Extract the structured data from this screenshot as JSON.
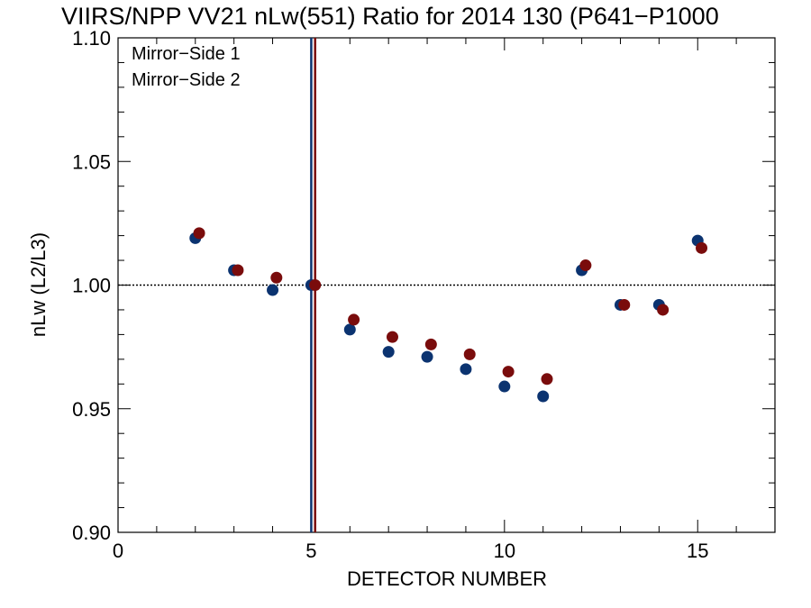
{
  "chart_data": {
    "type": "scatter",
    "title": "VIIRS/NPP VV21 nLw(551) Ratio for 2014 130 (P641−P1000",
    "xlabel": "DETECTOR NUMBER",
    "ylabel": "nLw (L2/L3)",
    "xlim": [
      0,
      17
    ],
    "ylim": [
      0.9,
      1.1
    ],
    "x_ticks": [
      0,
      5,
      10,
      15
    ],
    "x_tick_labels": [
      "0",
      "5",
      "10",
      "15"
    ],
    "y_ticks": [
      0.9,
      0.95,
      1.0,
      1.05,
      1.1
    ],
    "y_tick_labels": [
      "0.90",
      "0.95",
      "1.00",
      "1.05",
      "1.10"
    ],
    "reference_line_y": 1.0,
    "vertical_lines": [
      {
        "x": 5.0,
        "color": "#0b3370"
      },
      {
        "x": 5.1,
        "color": "#7a0c0c"
      }
    ],
    "legend_position": "top-left",
    "series": [
      {
        "name": "Mirror−Side 1",
        "color": "#0b3370",
        "x": [
          2,
          3,
          4,
          5,
          6,
          7,
          8,
          9,
          10,
          11,
          12,
          13,
          14,
          15
        ],
        "y": [
          1.019,
          1.006,
          0.998,
          1.0,
          0.982,
          0.973,
          0.971,
          0.966,
          0.959,
          0.955,
          1.006,
          0.992,
          0.992,
          1.018
        ]
      },
      {
        "name": "Mirror−Side 2",
        "color": "#7a0c0c",
        "x": [
          2.1,
          3.1,
          4.1,
          5.1,
          6.1,
          7.1,
          8.1,
          9.1,
          10.1,
          11.1,
          12.1,
          13.1,
          14.1,
          15.1
        ],
        "y": [
          1.021,
          1.006,
          1.003,
          1.0,
          0.986,
          0.979,
          0.976,
          0.972,
          0.965,
          0.962,
          1.008,
          0.992,
          0.99,
          1.015
        ]
      }
    ]
  }
}
